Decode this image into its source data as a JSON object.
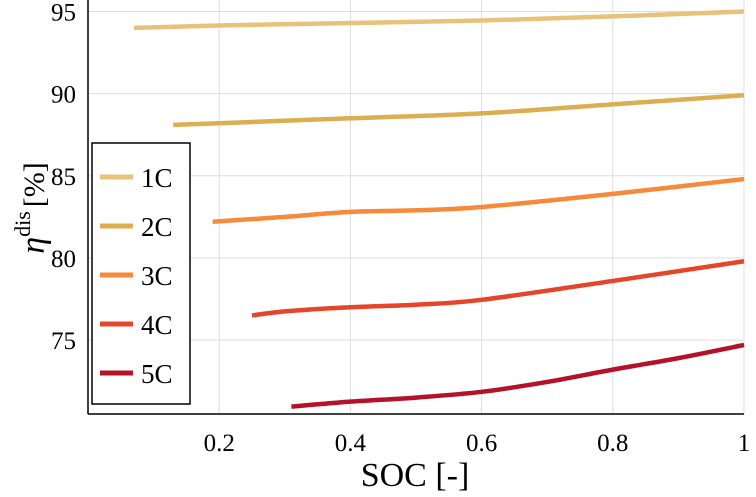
{
  "chart_data": {
    "type": "line",
    "xlabel": "SOC [-]",
    "ylabel": {
      "symbol": "η",
      "superscript": "dis",
      "unit": "[%]"
    },
    "xlim": [
      0.0,
      1.0
    ],
    "ylim": [
      70.5,
      95.7
    ],
    "xticks": [
      0.2,
      0.4,
      0.6,
      0.8,
      1.0
    ],
    "xtick_labels": [
      "0.2",
      "0.4",
      "0.6",
      "0.8",
      "1"
    ],
    "yticks": [
      75,
      80,
      85,
      90,
      95
    ],
    "ytick_labels": [
      "75",
      "80",
      "85",
      "90",
      "95"
    ],
    "grid": true,
    "legend_position": "left-middle",
    "series": [
      {
        "name": "1C",
        "color": "#e8c27a",
        "x": [
          0.07,
          0.2,
          0.4,
          0.6,
          0.8,
          1.0
        ],
        "y": [
          94.0,
          94.15,
          94.3,
          94.45,
          94.7,
          95.0
        ]
      },
      {
        "name": "2C",
        "color": "#dcae52",
        "x": [
          0.13,
          0.2,
          0.4,
          0.6,
          0.8,
          1.0
        ],
        "y": [
          88.1,
          88.2,
          88.5,
          88.8,
          89.35,
          89.9
        ]
      },
      {
        "name": "3C",
        "color": "#f58a3a",
        "x": [
          0.19,
          0.3,
          0.4,
          0.5,
          0.6,
          0.8,
          1.0
        ],
        "y": [
          82.2,
          82.5,
          82.8,
          82.9,
          83.1,
          83.9,
          84.8
        ]
      },
      {
        "name": "4C",
        "color": "#e5452a",
        "x": [
          0.25,
          0.3,
          0.4,
          0.5,
          0.6,
          0.8,
          1.0
        ],
        "y": [
          76.5,
          76.75,
          77.0,
          77.15,
          77.45,
          78.6,
          79.8
        ]
      },
      {
        "name": "5C",
        "color": "#b5122a",
        "x": [
          0.31,
          0.4,
          0.5,
          0.6,
          0.7,
          0.8,
          0.9,
          1.0
        ],
        "y": [
          70.95,
          71.25,
          71.5,
          71.85,
          72.45,
          73.2,
          73.9,
          74.7
        ]
      }
    ]
  }
}
